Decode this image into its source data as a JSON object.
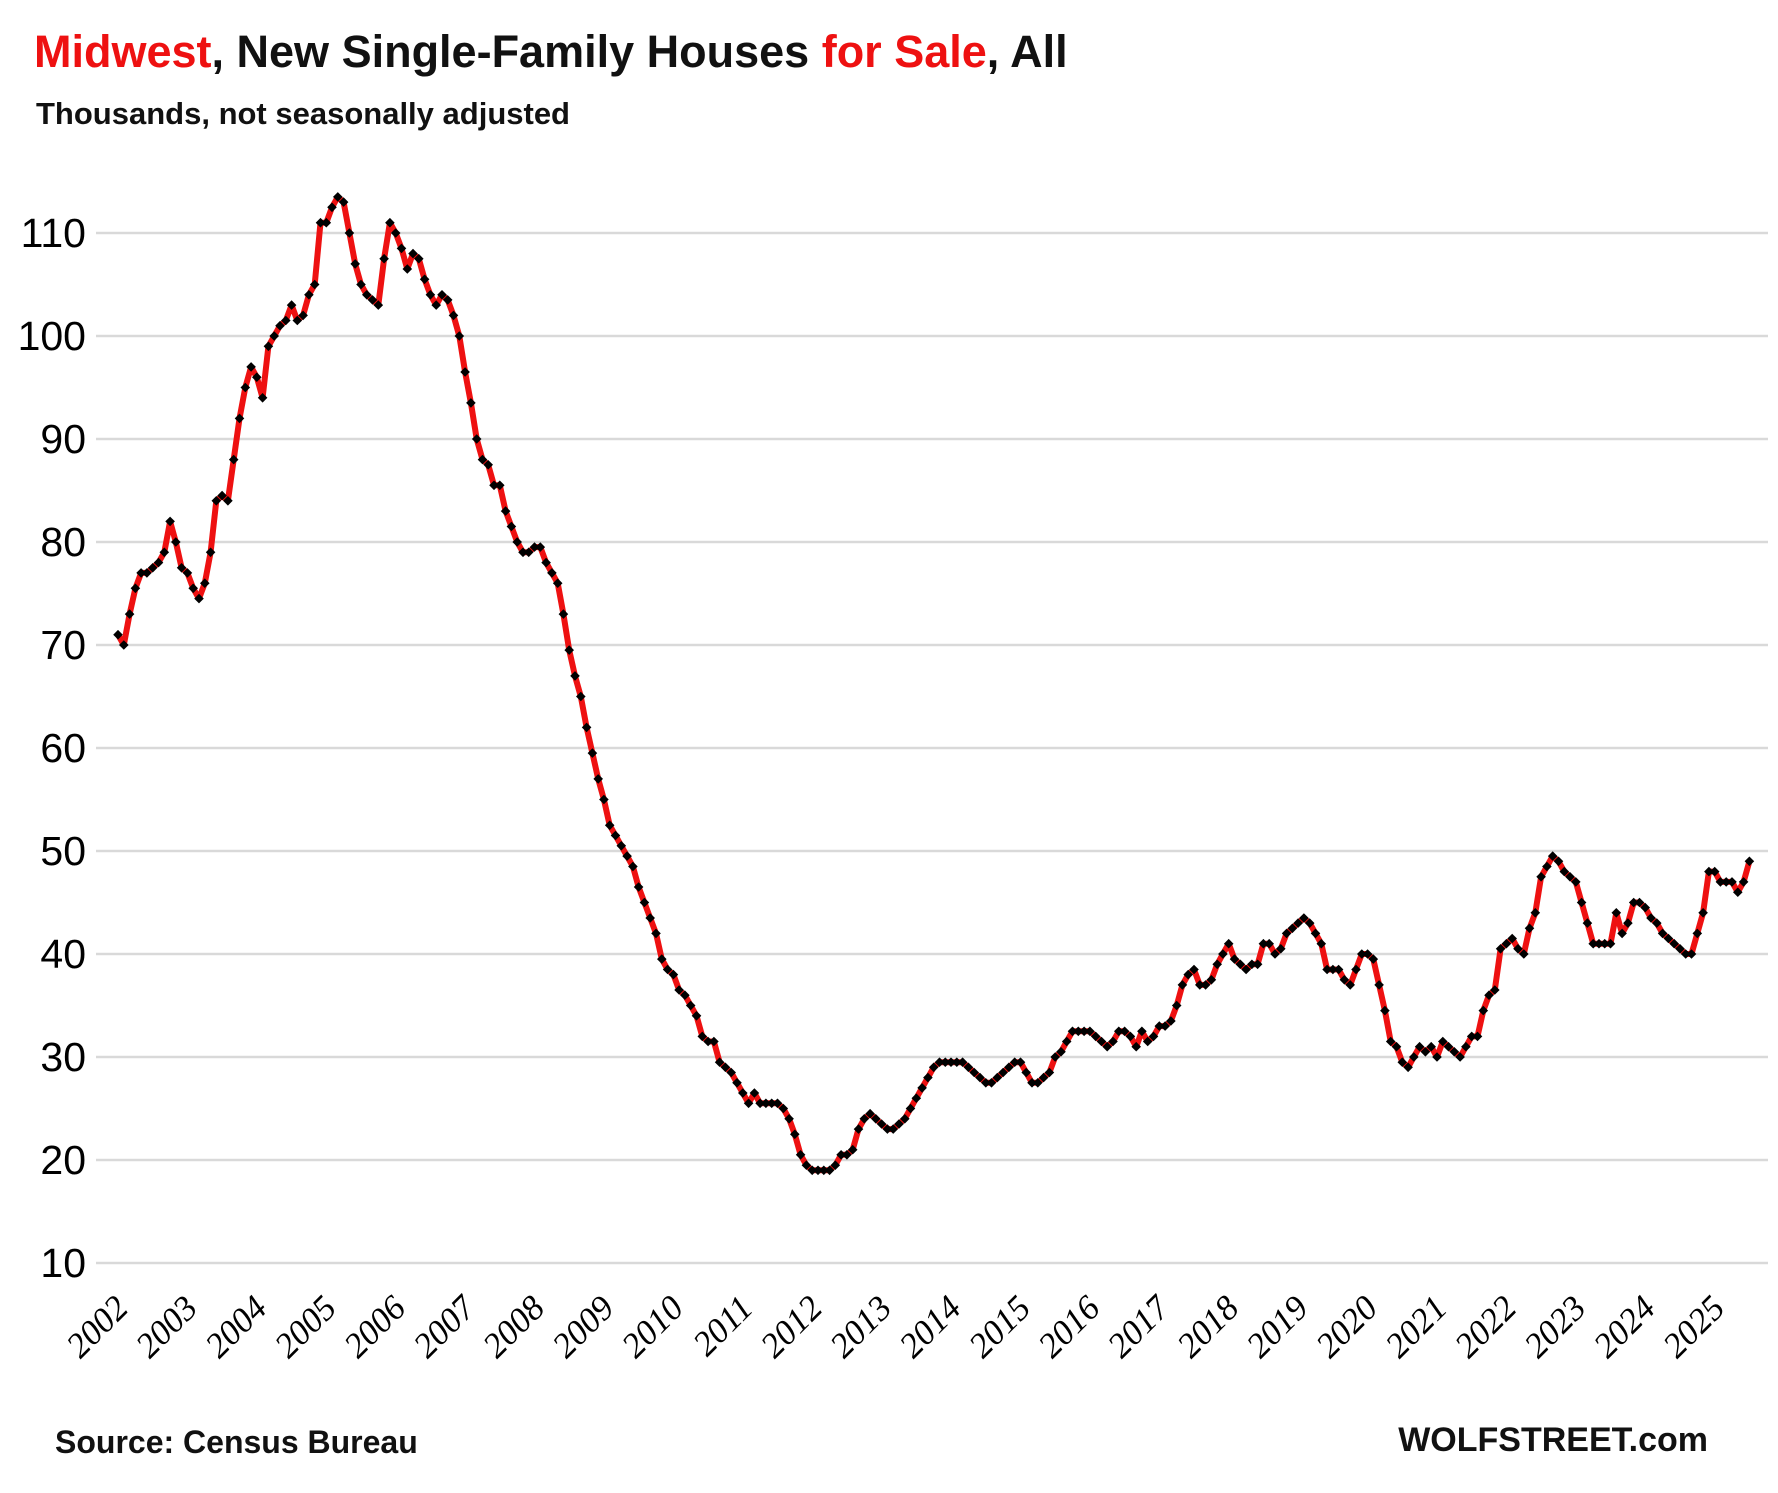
{
  "title": {
    "part1": "Midwest",
    "part2": ", New Single-Family Houses ",
    "part3": "for Sale",
    "part4": ", All"
  },
  "subtitle": "Thousands, not seasonally adjusted",
  "footer": {
    "source": "Source: Census Bureau",
    "watermark": "WOLFSTREET.com"
  },
  "colors": {
    "accent_red": "#ee1111",
    "line": "#ee1111",
    "marker": "#000000",
    "gridline": "#d9d9d9",
    "text": "#111111"
  },
  "chart_data": {
    "type": "line",
    "title": "Midwest, New Single-Family Houses for Sale, All",
    "subtitle": "Thousands, not seasonally adjusted",
    "unit": "thousands of houses",
    "frequency": "monthly",
    "x_start": "2002-01",
    "x_end": "2025-07",
    "x_tick_labels": [
      "2002",
      "2003",
      "2004",
      "2005",
      "2006",
      "2007",
      "2008",
      "2009",
      "2010",
      "2011",
      "2012",
      "2013",
      "2014",
      "2015",
      "2016",
      "2017",
      "2018",
      "2019",
      "2020",
      "2021",
      "2022",
      "2023",
      "2024",
      "2025"
    ],
    "y_ticks": [
      10,
      20,
      30,
      40,
      50,
      60,
      70,
      80,
      90,
      100,
      110
    ],
    "ylim": [
      10,
      116
    ],
    "grid": "horizontal",
    "legend": "none",
    "line_color": "#ee1111",
    "marker": {
      "shape": "diamond",
      "color": "#000000"
    },
    "series": [
      {
        "name": "New single-family houses for sale, Midwest (thousands, NSA)",
        "values": [
          71,
          70,
          73,
          75.5,
          77,
          77,
          77.5,
          78,
          79,
          82,
          80,
          77.5,
          77,
          75.5,
          74.5,
          76,
          79,
          84,
          84.5,
          84,
          88,
          92,
          95,
          97,
          96,
          94,
          99,
          100,
          101,
          101.5,
          103,
          101.5,
          102,
          104,
          105,
          111,
          111,
          112.5,
          113.5,
          113,
          110,
          107,
          105,
          104,
          103.5,
          103,
          107.5,
          111,
          110,
          108.5,
          106.5,
          108,
          107.5,
          105.5,
          104,
          103,
          104,
          103.5,
          102,
          100,
          96.5,
          93.5,
          90,
          88,
          87.5,
          85.5,
          85.5,
          83,
          81.5,
          80,
          79,
          79,
          79.5,
          79.5,
          78,
          77,
          76,
          73,
          69.5,
          67,
          65,
          62,
          59.5,
          57,
          55,
          52.5,
          51.5,
          50.5,
          49.5,
          48.5,
          46.5,
          45,
          43.5,
          42,
          39.5,
          38.5,
          38,
          36.5,
          36,
          35,
          34,
          32,
          31.5,
          31.5,
          29.5,
          29,
          28.5,
          27.5,
          26.5,
          25.5,
          26.5,
          25.5,
          25.5,
          25.5,
          25.5,
          25,
          24,
          22.5,
          20.5,
          19.5,
          19,
          19,
          19,
          19,
          19.5,
          20.5,
          20.5,
          21,
          23,
          24,
          24.5,
          24,
          23.5,
          23,
          23,
          23.5,
          24,
          25,
          26,
          27,
          28,
          29,
          29.5,
          29.5,
          29.5,
          29.5,
          29.5,
          29,
          28.5,
          28,
          27.5,
          27.5,
          28,
          28.5,
          29,
          29.5,
          29.5,
          28.5,
          27.5,
          27.5,
          28,
          28.5,
          30,
          30.5,
          31.5,
          32.5,
          32.5,
          32.5,
          32.5,
          32,
          31.5,
          31,
          31.5,
          32.5,
          32.5,
          32,
          31,
          32.5,
          31.5,
          32,
          33,
          33,
          33.5,
          35,
          37,
          38,
          38.5,
          37,
          37,
          37.5,
          39,
          40,
          41,
          39.5,
          39,
          38.5,
          39,
          39,
          41,
          41,
          40,
          40.5,
          42,
          42.5,
          43,
          43.5,
          43,
          42,
          41,
          38.5,
          38.5,
          38.5,
          37.5,
          37,
          38.5,
          40,
          40,
          39.5,
          37,
          34.5,
          31.5,
          31,
          29.5,
          29,
          30,
          31,
          30.5,
          31,
          30,
          31.5,
          31,
          30.5,
          30,
          31,
          32,
          32,
          34.5,
          36,
          36.5,
          40.5,
          41,
          41.5,
          40.5,
          40,
          42.5,
          44,
          47.5,
          48.5,
          49.5,
          49,
          48,
          47.5,
          47,
          45,
          43,
          41,
          41,
          41,
          41,
          44,
          42,
          43,
          45,
          45,
          44.5,
          43.5,
          43,
          42,
          41.5,
          41,
          40.5,
          40,
          40,
          42,
          44,
          48,
          48,
          47,
          47,
          47,
          46,
          47,
          49
        ]
      }
    ]
  }
}
